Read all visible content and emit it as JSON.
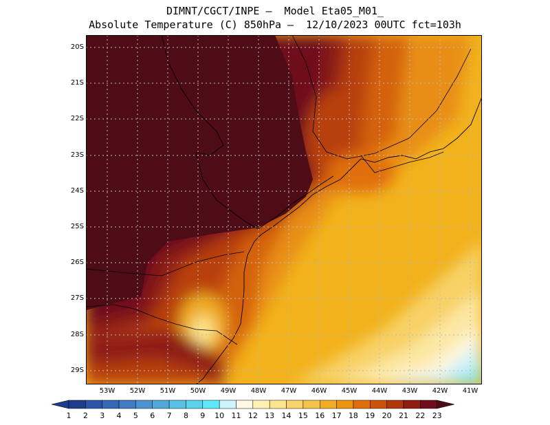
{
  "title_line1": "DIMNT/CGCT/INPE –  Model Eta05_M01_",
  "title_line2": "Absolute Temperature (C) 850hPa –  12/10/2023 00UTC fct=103h",
  "lat_labels": [
    "20S",
    "21S",
    "22S",
    "23S",
    "24S",
    "25S",
    "26S",
    "27S",
    "28S",
    "29S"
  ],
  "lon_labels": [
    "53W",
    "52W",
    "51W",
    "50W",
    "49W",
    "48W",
    "47W",
    "46W",
    "45W",
    "44W",
    "43W",
    "42W",
    "41W"
  ],
  "colorbar": {
    "labels": [
      "1",
      "2",
      "3",
      "4",
      "5",
      "6",
      "7",
      "8",
      "9",
      "10",
      "11",
      "12",
      "13",
      "14",
      "15",
      "16",
      "17",
      "18",
      "19",
      "20",
      "21",
      "22",
      "23"
    ],
    "colors": [
      "#1e3c8c",
      "#2a55a8",
      "#3668b8",
      "#3f7cc4",
      "#4a92d0",
      "#52a8dc",
      "#5ac0e4",
      "#5ad2ec",
      "#5ce8f8",
      "#ccf4fc",
      "#fff8e6",
      "#fff2b4",
      "#fce48c",
      "#f8d46a",
      "#f4c44a",
      "#f0ac22",
      "#ec9410",
      "#e06e0a",
      "#cc520a",
      "#b0360c",
      "#8e1e12",
      "#6e0e1a",
      "#4e0c16"
    ]
  }
}
